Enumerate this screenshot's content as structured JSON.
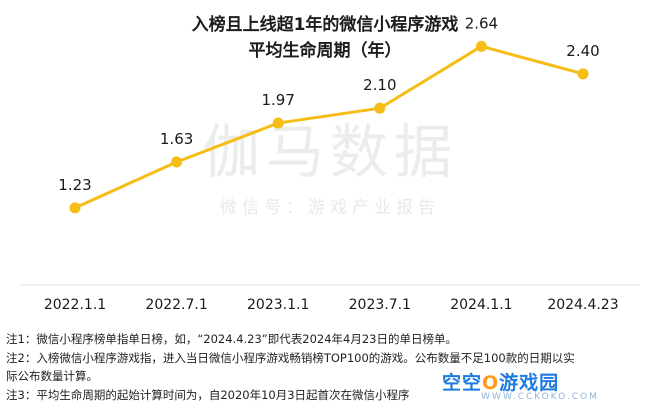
{
  "title_line1": "入榜且上线超1年的微信小程序游戏",
  "title_line2": "平均生命周期（年）",
  "watermark": {
    "main": "伽马数据",
    "sub": "微信号：游戏产业报告"
  },
  "chart_data": {
    "type": "line",
    "categories": [
      "2022.1.1",
      "2022.7.1",
      "2023.1.1",
      "2023.7.1",
      "2024.1.1",
      "2024.4.23"
    ],
    "values": [
      1.23,
      1.63,
      1.97,
      2.1,
      2.64,
      2.4
    ],
    "data_labels": [
      "1.23",
      "1.63",
      "1.97",
      "2.10",
      "2.64",
      "2.40"
    ],
    "ylim": [
      0.6,
      2.8
    ],
    "color": "#f6bd16",
    "grid": false
  },
  "notes": [
    "注1：微信小程序榜单指单日榜，如，“2024.4.23”即代表2024年4月23日的单日榜单。",
    "注2：入榜微信小程序游戏指，进入当日微信小程序游戏畅销榜TOP100的游戏。公布数量不足100款的日期以实",
    "际公布数量计算。",
    "注3：平均生命周期的起始计算时间为，自2020年10月3日起首次在微信小程序"
  ],
  "logo": {
    "text_pre": "空空",
    "text_o": "O",
    "text_post": "游戏园",
    "sub": "WWW.CCKOKO.COM"
  }
}
